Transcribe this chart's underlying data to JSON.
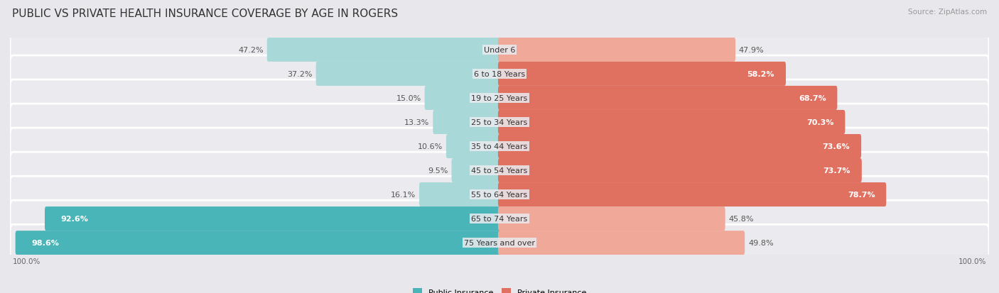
{
  "title": "PUBLIC VS PRIVATE HEALTH INSURANCE COVERAGE BY AGE IN ROGERS",
  "source": "Source: ZipAtlas.com",
  "categories": [
    "Under 6",
    "6 to 18 Years",
    "19 to 25 Years",
    "25 to 34 Years",
    "35 to 44 Years",
    "45 to 54 Years",
    "55 to 64 Years",
    "65 to 74 Years",
    "75 Years and over"
  ],
  "public_values": [
    47.2,
    37.2,
    15.0,
    13.3,
    10.6,
    9.5,
    16.1,
    92.6,
    98.6
  ],
  "private_values": [
    47.9,
    58.2,
    68.7,
    70.3,
    73.6,
    73.7,
    78.7,
    45.8,
    49.8
  ],
  "public_color_dark": "#4ab5b8",
  "public_color_light": "#a8d8d8",
  "private_color_dark": "#e07060",
  "private_color_light": "#f0a898",
  "background_color": "#e8e8ec",
  "row_bg_color": "#ebebef",
  "title_fontsize": 11,
  "source_fontsize": 7.5,
  "label_fontsize": 8,
  "axis_label": "100.0%",
  "legend_public": "Public Insurance",
  "legend_private": "Private Insurance",
  "threshold": 50
}
